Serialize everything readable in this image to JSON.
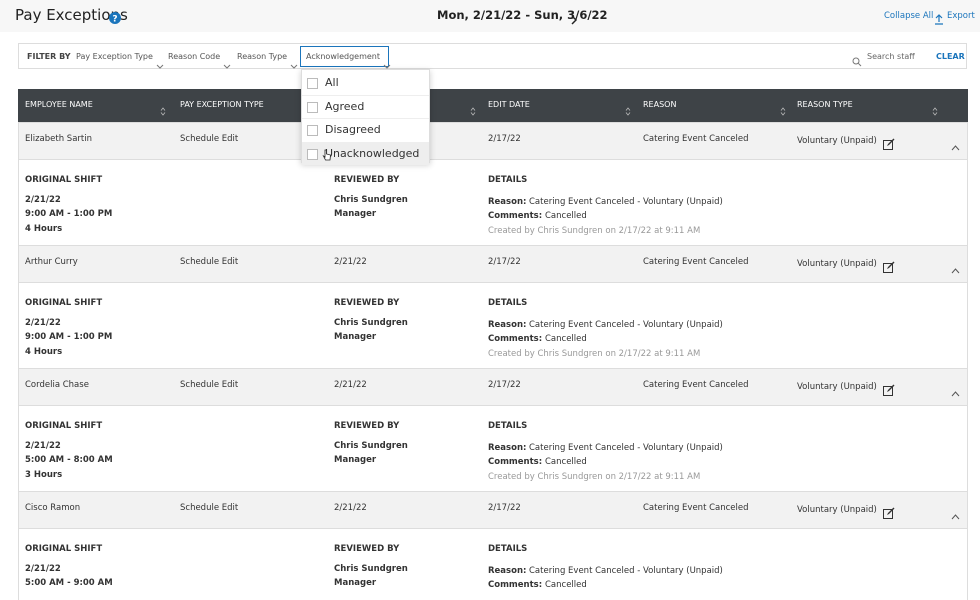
{
  "header": {
    "title": "Pay Exceptions",
    "date_range": "Mon, 2/21/22 - Sun, 3/6/22",
    "collapse_all": "Collapse All",
    "export": "Export"
  },
  "filters": {
    "label": "FILTER BY",
    "items": [
      "Pay Exception Type",
      "Reason Code",
      "Reason Type",
      "Acknowledgement"
    ],
    "search_placeholder": "Search staff",
    "clear": "CLEAR"
  },
  "dropdown": {
    "options": [
      "All",
      "Agreed",
      "Disagreed",
      "Unacknowledged"
    ]
  },
  "table": {
    "columns": [
      "EMPLOYEE NAME",
      "PAY EXCEPTION TYPE",
      "EDIT DATE",
      "REASON",
      "REASON TYPE"
    ],
    "detail_labels": {
      "shift": "ORIGINAL SHIFT",
      "reviewed": "REVIEWED BY",
      "details": "DETAILS",
      "reason": "Reason:",
      "comments": "Comments:"
    },
    "rows": [
      {
        "employee": "Elizabeth Sartin",
        "type": "Schedule Edit",
        "edit_date": "2/17/22",
        "reason": "Catering Event Canceled",
        "reason_type": "Voluntary (Unpaid)",
        "detail": {
          "shift_date": "2/21/22",
          "shift_time": "9:00 AM - 1:00 PM",
          "hours": "4 Hours",
          "reviewer": "Chris Sundgren",
          "role": "Manager",
          "reason": "Catering Event Canceled - Voluntary (Unpaid)",
          "comments": "Cancelled",
          "created": "Created by Chris Sundgren on 2/17/22 at 9:11 AM"
        }
      },
      {
        "employee": "Arthur Curry",
        "type": "Schedule Edit",
        "date": "2/21/22",
        "edit_date": "2/17/22",
        "reason": "Catering Event Canceled",
        "reason_type": "Voluntary (Unpaid)",
        "detail": {
          "shift_date": "2/21/22",
          "shift_time": "9:00 AM - 1:00 PM",
          "hours": "4 Hours",
          "reviewer": "Chris Sundgren",
          "role": "Manager",
          "reason": "Catering Event Canceled - Voluntary (Unpaid)",
          "comments": "Cancelled",
          "created": "Created by Chris Sundgren on 2/17/22 at 9:11 AM"
        }
      },
      {
        "employee": "Cordelia Chase",
        "type": "Schedule Edit",
        "date": "2/21/22",
        "edit_date": "2/17/22",
        "reason": "Catering Event Canceled",
        "reason_type": "Voluntary (Unpaid)",
        "detail": {
          "shift_date": "2/21/22",
          "shift_time": "5:00 AM - 8:00 AM",
          "hours": "3 Hours",
          "reviewer": "Chris Sundgren",
          "role": "Manager",
          "reason": "Catering Event Canceled - Voluntary (Unpaid)",
          "comments": "Cancelled",
          "created": "Created by Chris Sundgren on 2/17/22 at 9:11 AM"
        }
      },
      {
        "employee": "Cisco Ramon",
        "type": "Schedule Edit",
        "date": "2/21/22",
        "edit_date": "2/17/22",
        "reason": "Catering Event Canceled",
        "reason_type": "Voluntary (Unpaid)",
        "detail": {
          "shift_date": "2/21/22",
          "shift_time": "5:00 AM - 9:00 AM",
          "reviewer": "Chris Sundgren",
          "role": "Manager",
          "reason": "Catering Event Canceled - Voluntary (Unpaid)",
          "comments": "Cancelled"
        }
      }
    ]
  }
}
